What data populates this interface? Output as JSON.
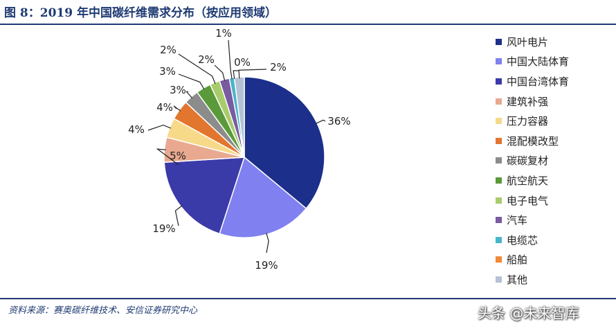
{
  "header": {
    "title": "图 8：2019 年中国碳纤维需求分布（按应用领域）"
  },
  "footer": {
    "source": "资料来源：赛奥碳纤维技术、安信证券研究中心"
  },
  "watermark": {
    "text": "头条 @未来智库"
  },
  "chart_data": {
    "type": "pie",
    "title": "图 8：2019 年中国碳纤维需求分布（按应用领域）",
    "legend_position": "right",
    "start_angle_deg": 0,
    "direction": "clockwise",
    "categories": [
      "风叶电片",
      "中国大陆体育",
      "中国台湾体育",
      "建筑补强",
      "压力容器",
      "混配模改型",
      "碳碳复材",
      "航空航天",
      "电子电气",
      "汽车",
      "电缆芯",
      "船舶",
      "其他"
    ],
    "values": [
      36,
      19,
      19,
      5,
      4,
      4,
      3,
      3,
      2,
      2,
      1,
      0,
      2
    ],
    "labels": [
      "36%",
      "19%",
      "19%",
      "5%",
      "4%",
      "4%",
      "3%",
      "3%",
      "2%",
      "2%",
      "1%",
      "0%",
      "2%"
    ],
    "colors": [
      "#1c2f8a",
      "#8080f0",
      "#3a3aa8",
      "#e8a990",
      "#f7d98a",
      "#e2762e",
      "#8c8c8c",
      "#5a9a3a",
      "#a8cc6c",
      "#7a5aa0",
      "#4ab4cc",
      "#ef8a3a",
      "#b4c2d4"
    ]
  }
}
